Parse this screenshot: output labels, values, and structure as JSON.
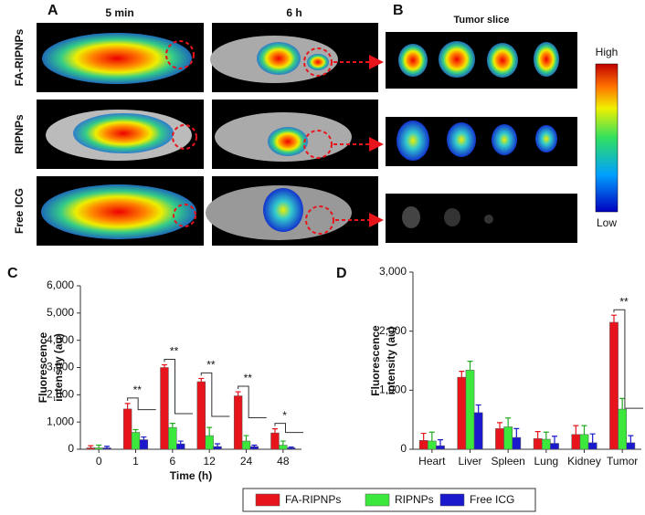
{
  "figure": {
    "panels": [
      "A",
      "B",
      "C",
      "D"
    ],
    "time_labels": [
      "5 min",
      "6 h"
    ],
    "rows": [
      "FA-RIPNPs",
      "RIPNPs",
      "Free ICG"
    ],
    "slice_title": "Tumor slice",
    "scale_high": "High",
    "scale_low": "Low"
  },
  "chart_data": [
    {
      "type": "bar",
      "categories": [
        "0",
        "1",
        "6",
        "12",
        "24",
        "48"
      ],
      "xlabel": "Time (h)",
      "ylabel": [
        "Fluorescence",
        "intensity (au)"
      ],
      "ylim": [
        0,
        6000
      ],
      "yticks": [
        0,
        {
          "value": 1000,
          "label": "1,000"
        },
        {
          "value": 2000,
          "label": "2,000"
        },
        {
          "value": 3000,
          "label": "3,000"
        },
        {
          "value": 4000,
          "label": "4,000"
        },
        {
          "value": 5000,
          "label": "5,000"
        },
        {
          "value": 6000,
          "label": "6,000"
        }
      ],
      "series": [
        {
          "name": "FA-RIPNPs",
          "color": "#e8141b",
          "values": [
            50,
            1480,
            3000,
            2480,
            1960,
            600
          ],
          "errors": [
            80,
            200,
            100,
            120,
            150,
            150
          ]
        },
        {
          "name": "RIPNPs",
          "color": "#3ce83c",
          "values": [
            50,
            620,
            800,
            500,
            300,
            150
          ],
          "errors": [
            100,
            100,
            150,
            300,
            200,
            150
          ]
        },
        {
          "name": "Free ICG",
          "color": "#1a1acc",
          "values": [
            50,
            350,
            200,
            100,
            100,
            50
          ],
          "errors": [
            60,
            100,
            100,
            100,
            50,
            30
          ]
        }
      ],
      "annotations": [
        {
          "label": "**",
          "category": "1"
        },
        {
          "label": "**",
          "category": "6"
        },
        {
          "label": "**",
          "category": "12"
        },
        {
          "label": "**",
          "category": "24"
        },
        {
          "label": "*",
          "category": "48"
        }
      ]
    },
    {
      "type": "bar",
      "categories": [
        "Heart",
        "Liver",
        "Spleen",
        "Lung",
        "Kidney",
        "Tumor"
      ],
      "ylabel": [
        "Fluorescence",
        "intensity (au)"
      ],
      "ylim": [
        0,
        3000
      ],
      "yticks": [
        0,
        {
          "value": 1000,
          "label": "1,000"
        },
        {
          "value": 2000,
          "label": "2,000"
        },
        {
          "value": 3000,
          "label": "3,000"
        }
      ],
      "series": [
        {
          "name": "FA-RIPNPs",
          "color": "#e8141b",
          "values": [
            150,
            1220,
            350,
            180,
            250,
            2150
          ],
          "errors": [
            120,
            100,
            100,
            120,
            150,
            120
          ]
        },
        {
          "name": "RIPNPs",
          "color": "#3ce83c",
          "values": [
            140,
            1340,
            380,
            170,
            250,
            680
          ],
          "errors": [
            150,
            150,
            150,
            120,
            150,
            180
          ]
        },
        {
          "name": "Free ICG",
          "color": "#1a1acc",
          "values": [
            60,
            620,
            200,
            100,
            110,
            110
          ],
          "errors": [
            100,
            130,
            150,
            120,
            150,
            120
          ]
        }
      ],
      "annotations": [
        {
          "label": "**",
          "category": "Tumor"
        }
      ]
    }
  ]
}
